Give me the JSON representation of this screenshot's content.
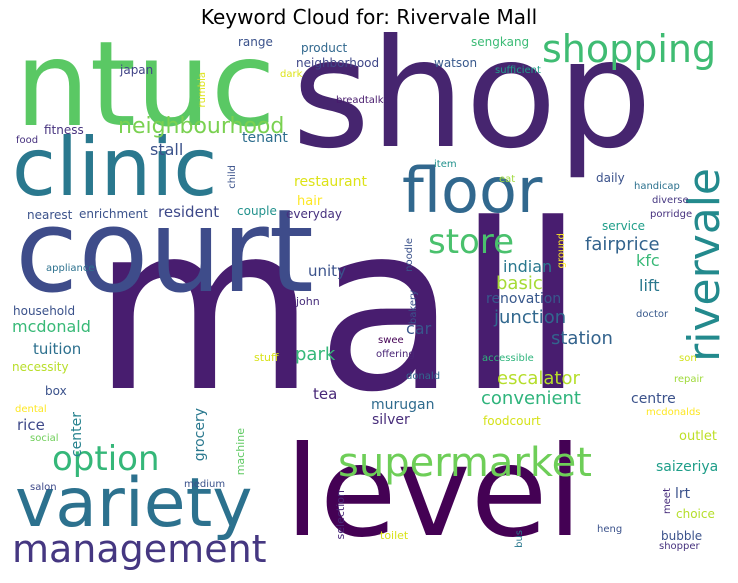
{
  "title": "Keyword Cloud for: Rivervale Mall",
  "words": [
    {
      "t": "mall",
      "c": "#481d6f"
    },
    {
      "t": "shop",
      "c": "#46256f"
    },
    {
      "t": "court",
      "c": "#3e4c8a"
    },
    {
      "t": "level",
      "c": "#440154"
    },
    {
      "t": "ntuc",
      "c": "#5ac864"
    },
    {
      "t": "clinic",
      "c": "#2a788e"
    },
    {
      "t": "floor",
      "c": "#31688e"
    },
    {
      "t": "shopping",
      "c": "#3fbc73"
    },
    {
      "t": "variety",
      "c": "#2c718e"
    },
    {
      "t": "supermarket",
      "c": "#6ece58"
    },
    {
      "t": "management",
      "c": "#453781"
    },
    {
      "t": "option",
      "c": "#35b779"
    },
    {
      "t": "store",
      "c": "#4ac16d"
    },
    {
      "t": "rivervale",
      "c": "#238a8d"
    },
    {
      "t": "neighbourhood",
      "c": "#7ad151"
    },
    {
      "t": "escalator",
      "c": "#b5de2b"
    },
    {
      "t": "convenient",
      "c": "#2fb47c"
    },
    {
      "t": "fairprice",
      "c": "#33638d"
    },
    {
      "t": "junction",
      "c": "#31688e"
    },
    {
      "t": "station",
      "c": "#33638d"
    },
    {
      "t": "park",
      "c": "#35b779"
    },
    {
      "t": "indian",
      "c": "#2a788e"
    },
    {
      "t": "basic",
      "c": "#a5db36"
    },
    {
      "t": "mcdonald",
      "c": "#38b977"
    },
    {
      "t": "tuition",
      "c": "#2d708e"
    },
    {
      "t": "lift",
      "c": "#2a788e"
    },
    {
      "t": "kfc",
      "c": "#38b977"
    },
    {
      "t": "stall",
      "c": "#3b528b"
    },
    {
      "t": "tenant",
      "c": "#2e6e8e"
    },
    {
      "t": "restaurant",
      "c": "#dde318"
    },
    {
      "t": "resident",
      "c": "#3e4989"
    },
    {
      "t": "unity",
      "c": "#3b528b"
    },
    {
      "t": "car",
      "c": "#39568c"
    },
    {
      "t": "renovation",
      "c": "#38588c"
    },
    {
      "t": "murugan",
      "c": "#2f6b8e"
    },
    {
      "t": "grocery",
      "c": "#2a788e"
    },
    {
      "t": "center",
      "c": "#26828e"
    },
    {
      "t": "rice",
      "c": "#3e4989"
    },
    {
      "t": "tea",
      "c": "#482878"
    },
    {
      "t": "centre",
      "c": "#3b528b"
    },
    {
      "t": "lrt",
      "c": "#3b528b"
    },
    {
      "t": "saizeriya",
      "c": "#1f9e89"
    },
    {
      "t": "outlet",
      "c": "#bddf26"
    },
    {
      "t": "silver",
      "c": "#472c7a"
    },
    {
      "t": "foodcourt",
      "c": "#d5e21a"
    },
    {
      "t": "sengkang",
      "c": "#3bbb75"
    },
    {
      "t": "watson",
      "c": "#38598c"
    },
    {
      "t": "product",
      "c": "#31688e"
    },
    {
      "t": "neighborhood",
      "c": "#3f4788"
    },
    {
      "t": "range",
      "c": "#3b528b"
    },
    {
      "t": "japan",
      "c": "#414487"
    },
    {
      "t": "fitness",
      "c": "#46327e"
    },
    {
      "t": "food",
      "c": "#46307e"
    },
    {
      "t": "breadtalk",
      "c": "#481b6d"
    },
    {
      "t": "hair",
      "c": "#fde725"
    },
    {
      "t": "couple",
      "c": "#21918c"
    },
    {
      "t": "everyday",
      "c": "#46307e"
    },
    {
      "t": "enrichment",
      "c": "#3b528b"
    },
    {
      "t": "nearest",
      "c": "#3b528b"
    },
    {
      "t": "daily",
      "c": "#3b528b"
    },
    {
      "t": "eat",
      "c": "#9fda3a"
    },
    {
      "t": "service",
      "c": "#1f9e89"
    },
    {
      "t": "handicap",
      "c": "#2c718e"
    },
    {
      "t": "diverse",
      "c": "#453781"
    },
    {
      "t": "porridge",
      "c": "#46307e"
    },
    {
      "t": "household",
      "c": "#3b528b"
    },
    {
      "t": "appliance",
      "c": "#2c718e"
    },
    {
      "t": "john",
      "c": "#472d7b"
    },
    {
      "t": "necessity",
      "c": "#b8de29"
    },
    {
      "t": "box",
      "c": "#3b528b"
    },
    {
      "t": "dental",
      "c": "#fde725"
    },
    {
      "t": "social",
      "c": "#6ece58"
    },
    {
      "t": "salon",
      "c": "#3e4989"
    },
    {
      "t": "medium",
      "c": "#3b528b"
    },
    {
      "t": "machine",
      "c": "#5ec962"
    },
    {
      "t": "stuff",
      "c": "#d8e219"
    },
    {
      "t": "swee",
      "c": "#440154"
    },
    {
      "t": "offering",
      "c": "#482475"
    },
    {
      "t": "donald",
      "c": "#31688e"
    },
    {
      "t": "accessible",
      "c": "#2fb47c"
    },
    {
      "t": "doctor",
      "c": "#38598c"
    },
    {
      "t": "son",
      "c": "#d2e21b"
    },
    {
      "t": "repair",
      "c": "#9fda3a"
    },
    {
      "t": "mcdonalds",
      "c": "#fde725"
    },
    {
      "t": "selection",
      "c": "#482878"
    },
    {
      "t": "toilet",
      "c": "#d8e219"
    },
    {
      "t": "bus",
      "c": "#2a788e"
    },
    {
      "t": "heng",
      "c": "#3b528b"
    },
    {
      "t": "meet",
      "c": "#472d7b"
    },
    {
      "t": "choice",
      "c": "#b5de2b"
    },
    {
      "t": "bubble",
      "c": "#3b528b"
    },
    {
      "t": "shopper",
      "c": "#46327e"
    },
    {
      "t": "rumbia",
      "c": "#dde318"
    },
    {
      "t": "dark",
      "c": "#dde318"
    },
    {
      "t": "child",
      "c": "#3b528b"
    },
    {
      "t": "sufficient",
      "c": "#1f9e89"
    },
    {
      "t": "item",
      "c": "#21918c"
    },
    {
      "t": "noodle",
      "c": "#3b528b"
    },
    {
      "t": "ground",
      "c": "#fde725"
    },
    {
      "t": "bakery",
      "c": "#3b528b"
    }
  ]
}
